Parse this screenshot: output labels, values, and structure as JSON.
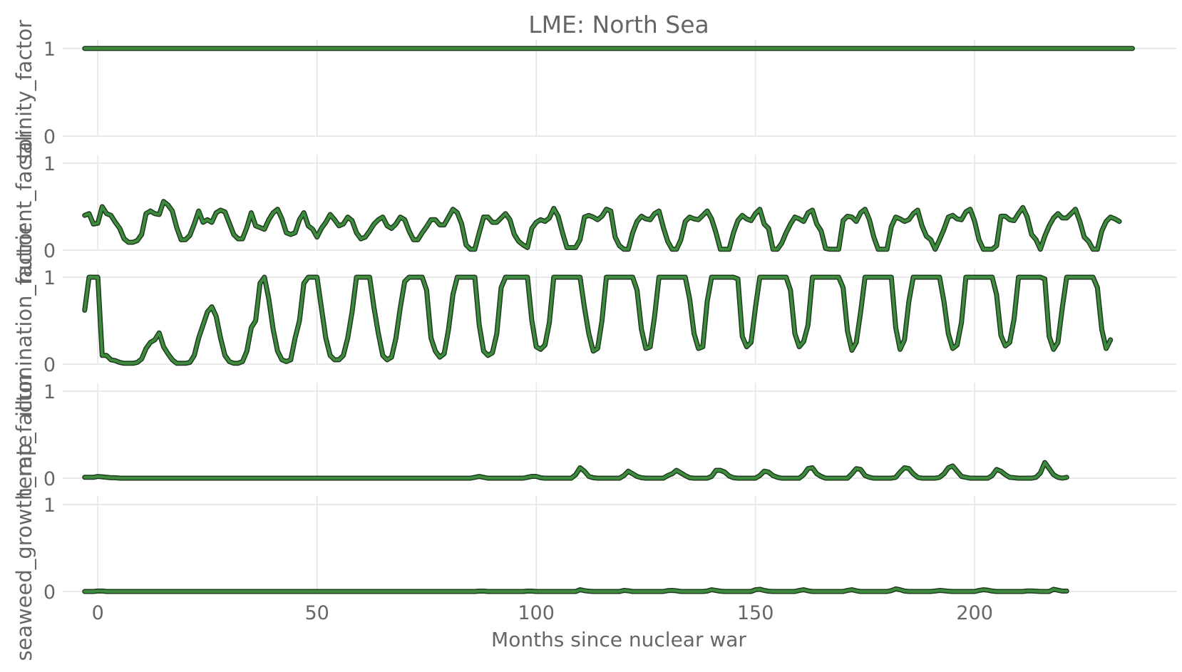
{
  "chart_data": {
    "type": "line",
    "title": "LME: North Sea",
    "xlabel": "Months since nuclear war",
    "xticks": [
      0,
      50,
      100,
      150,
      200
    ],
    "xlim": [
      -8,
      246
    ],
    "x_start": -3,
    "x_step": 1,
    "line_color": "#3d8b3d",
    "line_edge_color": "#1f3a1f",
    "panels": [
      {
        "ylabel": "salinity_factor",
        "yticks": [
          0,
          1
        ],
        "ylim": [
          0,
          1
        ],
        "values": [
          1,
          1,
          1,
          1,
          1,
          1,
          1,
          1,
          1,
          1,
          1,
          1,
          1,
          1,
          1,
          1,
          1,
          1,
          1,
          1,
          1,
          1,
          1,
          1,
          1,
          1,
          1,
          1,
          1,
          1,
          1,
          1,
          1,
          1,
          1,
          1,
          1,
          1,
          1,
          1,
          1,
          1,
          1,
          1,
          1,
          1,
          1,
          1,
          1,
          1,
          1,
          1,
          1,
          1,
          1,
          1,
          1,
          1,
          1,
          1,
          1,
          1,
          1,
          1,
          1,
          1,
          1,
          1,
          1,
          1,
          1,
          1,
          1,
          1,
          1,
          1,
          1,
          1,
          1,
          1,
          1,
          1,
          1,
          1,
          1,
          1,
          1,
          1,
          1,
          1,
          1,
          1,
          1,
          1,
          1,
          1,
          1,
          1,
          1,
          1,
          1,
          1,
          1,
          1,
          1,
          1,
          1,
          1,
          1,
          1,
          1,
          1,
          1,
          1,
          1,
          1,
          1,
          1,
          1,
          1,
          1,
          1,
          1,
          1,
          1,
          1,
          1,
          1,
          1,
          1,
          1,
          1,
          1,
          1,
          1,
          1,
          1,
          1,
          1,
          1,
          1,
          1,
          1,
          1,
          1,
          1,
          1,
          1,
          1,
          1,
          1,
          1,
          1,
          1,
          1,
          1,
          1,
          1,
          1,
          1,
          1,
          1,
          1,
          1,
          1,
          1,
          1,
          1,
          1,
          1,
          1,
          1,
          1,
          1,
          1,
          1,
          1,
          1,
          1,
          1,
          1,
          1,
          1,
          1,
          1,
          1,
          1,
          1,
          1,
          1,
          1,
          1,
          1,
          1,
          1,
          1,
          1,
          1,
          1,
          1,
          1,
          1,
          1,
          1,
          1,
          1,
          1,
          1,
          1,
          1,
          1,
          1,
          1,
          1,
          1,
          1,
          1,
          1,
          1,
          1,
          1,
          1,
          1,
          1,
          1,
          1,
          1,
          1,
          1,
          1,
          1,
          1,
          1,
          1,
          1,
          1,
          1,
          1,
          1,
          1
        ]
      },
      {
        "ylabel": "nutrient_factor",
        "yticks": [
          0,
          1
        ],
        "ylim": [
          0,
          1
        ],
        "values": [
          0.4,
          0.42,
          0.3,
          0.31,
          0.5,
          0.42,
          0.4,
          0.32,
          0.25,
          0.13,
          0.09,
          0.09,
          0.11,
          0.18,
          0.42,
          0.45,
          0.42,
          0.41,
          0.56,
          0.52,
          0.45,
          0.26,
          0.12,
          0.12,
          0.17,
          0.3,
          0.45,
          0.32,
          0.35,
          0.32,
          0.43,
          0.46,
          0.44,
          0.31,
          0.18,
          0.13,
          0.13,
          0.26,
          0.43,
          0.28,
          0.26,
          0.24,
          0.35,
          0.43,
          0.47,
          0.36,
          0.2,
          0.18,
          0.2,
          0.35,
          0.43,
          0.28,
          0.24,
          0.15,
          0.25,
          0.32,
          0.41,
          0.35,
          0.28,
          0.3,
          0.38,
          0.34,
          0.2,
          0.13,
          0.15,
          0.22,
          0.3,
          0.35,
          0.38,
          0.28,
          0.25,
          0.3,
          0.38,
          0.35,
          0.22,
          0.12,
          0.12,
          0.2,
          0.27,
          0.35,
          0.35,
          0.29,
          0.29,
          0.38,
          0.47,
          0.43,
          0.3,
          0.06,
          0.01,
          0.01,
          0.2,
          0.38,
          0.38,
          0.32,
          0.32,
          0.37,
          0.42,
          0.35,
          0.18,
          0.1,
          0.06,
          0.03,
          0.25,
          0.32,
          0.35,
          0.33,
          0.37,
          0.48,
          0.39,
          0.2,
          0.03,
          0.03,
          0.03,
          0.12,
          0.38,
          0.4,
          0.38,
          0.35,
          0.39,
          0.47,
          0.45,
          0.15,
          0.05,
          0.01,
          0.01,
          0.2,
          0.33,
          0.39,
          0.36,
          0.35,
          0.42,
          0.45,
          0.26,
          0.1,
          0.01,
          0.01,
          0.12,
          0.33,
          0.38,
          0.36,
          0.35,
          0.4,
          0.45,
          0.36,
          0.2,
          0.01,
          0.01,
          0.01,
          0.2,
          0.34,
          0.4,
          0.36,
          0.34,
          0.42,
          0.47,
          0.3,
          0.25,
          0.01,
          0.01,
          0.08,
          0.2,
          0.3,
          0.38,
          0.36,
          0.33,
          0.43,
          0.46,
          0.3,
          0.22,
          0.02,
          0.01,
          0.01,
          0.01,
          0.34,
          0.39,
          0.38,
          0.33,
          0.43,
          0.47,
          0.35,
          0.15,
          0.01,
          0.01,
          0.01,
          0.27,
          0.38,
          0.36,
          0.33,
          0.35,
          0.42,
          0.46,
          0.28,
          0.16,
          0.12,
          0.01,
          0.12,
          0.24,
          0.38,
          0.4,
          0.36,
          0.35,
          0.44,
          0.47,
          0.33,
          0.12,
          0.01,
          0.01,
          0.01,
          0.05,
          0.39,
          0.39,
          0.35,
          0.34,
          0.42,
          0.49,
          0.38,
          0.18,
          0.12,
          0.01,
          0.16,
          0.28,
          0.37,
          0.42,
          0.37,
          0.37,
          0.42,
          0.47,
          0.33,
          0.15,
          0.1,
          0.01,
          0.01,
          0.22,
          0.33,
          0.38,
          0.36,
          0.33
        ]
      },
      {
        "ylabel": "illumination_factor",
        "yticks": [
          0,
          1
        ],
        "ylim": [
          0,
          1
        ],
        "values": [
          0.62,
          1,
          1,
          1,
          0.1,
          0.1,
          0.05,
          0.04,
          0.02,
          0.01,
          0.01,
          0.01,
          0.02,
          0.06,
          0.18,
          0.25,
          0.28,
          0.36,
          0.2,
          0.12,
          0.05,
          0.01,
          0.01,
          0.01,
          0.02,
          0.1,
          0.3,
          0.45,
          0.6,
          0.66,
          0.55,
          0.3,
          0.1,
          0.03,
          0.01,
          0.01,
          0.03,
          0.15,
          0.42,
          0.5,
          0.93,
          1,
          0.75,
          0.4,
          0.15,
          0.05,
          0.03,
          0.05,
          0.3,
          0.5,
          0.93,
          1,
          1,
          1,
          0.65,
          0.3,
          0.1,
          0.05,
          0.05,
          0.1,
          0.3,
          0.6,
          1,
          1,
          1,
          1,
          0.65,
          0.35,
          0.1,
          0.05,
          0.08,
          0.3,
          0.65,
          0.95,
          1,
          1,
          1,
          1,
          0.85,
          0.3,
          0.15,
          0.08,
          0.12,
          0.4,
          0.8,
          1,
          1,
          1,
          1,
          1,
          0.45,
          0.15,
          0.1,
          0.13,
          0.35,
          0.88,
          1,
          1,
          1,
          1,
          1,
          1,
          0.5,
          0.2,
          0.17,
          0.22,
          0.48,
          1,
          1,
          1,
          1,
          1,
          1,
          1,
          0.65,
          0.35,
          0.15,
          0.18,
          0.5,
          1,
          1,
          1,
          1,
          1,
          1,
          1,
          0.85,
          0.4,
          0.18,
          0.2,
          0.55,
          1,
          1,
          1,
          1,
          1,
          1,
          1,
          0.75,
          0.35,
          0.18,
          0.2,
          0.72,
          1,
          1,
          1,
          1,
          1,
          1,
          0.98,
          0.32,
          0.2,
          0.25,
          0.65,
          1,
          1,
          1,
          1,
          1,
          1,
          1,
          0.85,
          0.35,
          0.2,
          0.26,
          0.45,
          1,
          1,
          1,
          1,
          1,
          1,
          1,
          0.88,
          0.38,
          0.16,
          0.25,
          0.6,
          1,
          1,
          1,
          1,
          1,
          1,
          1,
          0.42,
          0.17,
          0.28,
          0.72,
          1,
          1,
          1,
          1,
          1,
          1,
          1,
          0.72,
          0.35,
          0.18,
          0.22,
          0.48,
          1,
          1,
          1,
          1,
          1,
          1,
          1,
          0.8,
          0.33,
          0.21,
          0.25,
          0.52,
          1,
          1,
          1,
          1,
          1,
          1,
          0.98,
          0.32,
          0.17,
          0.25,
          0.65,
          1,
          1,
          1,
          1,
          1,
          1,
          1,
          0.88,
          0.4,
          0.18,
          0.28
        ]
      },
      {
        "ylabel": "temp_factor",
        "yticks": [
          0,
          1
        ],
        "ylim": [
          0,
          1
        ],
        "values": [
          0.01,
          0.01,
          0.01,
          0.02,
          0.015,
          0.01,
          0.005,
          0.005,
          0,
          0,
          0,
          0,
          0,
          0,
          0,
          0,
          0,
          0,
          0,
          0,
          0,
          0,
          0,
          0,
          0,
          0,
          0,
          0,
          0,
          0,
          0,
          0,
          0,
          0,
          0,
          0,
          0,
          0,
          0,
          0,
          0,
          0,
          0,
          0,
          0,
          0,
          0,
          0,
          0,
          0,
          0,
          0,
          0,
          0,
          0,
          0,
          0,
          0,
          0,
          0,
          0,
          0,
          0,
          0,
          0,
          0,
          0,
          0,
          0,
          0,
          0,
          0,
          0,
          0,
          0,
          0,
          0,
          0,
          0,
          0,
          0,
          0,
          0,
          0,
          0,
          0,
          0,
          0,
          0,
          0.01,
          0.02,
          0.01,
          0,
          0,
          0,
          0,
          0,
          0,
          0,
          0,
          0,
          0.01,
          0.02,
          0.02,
          0.005,
          0,
          0,
          0,
          0,
          0,
          0,
          0,
          0.04,
          0.12,
          0.08,
          0.02,
          0.005,
          0,
          0,
          0,
          0,
          0,
          0,
          0.03,
          0.08,
          0.05,
          0.02,
          0.005,
          0,
          0,
          0,
          0,
          0,
          0.03,
          0.05,
          0.09,
          0.06,
          0.03,
          0.005,
          0,
          0,
          0,
          0,
          0.02,
          0.09,
          0.09,
          0.07,
          0.025,
          0.005,
          0,
          0,
          0,
          0,
          0,
          0.03,
          0.08,
          0.07,
          0.03,
          0.01,
          0,
          0,
          0,
          0,
          0,
          0.04,
          0.11,
          0.12,
          0.05,
          0.02,
          0,
          0,
          0,
          0,
          0,
          0,
          0.05,
          0.11,
          0.1,
          0.03,
          0.01,
          0,
          0,
          0,
          0,
          0,
          0.01,
          0.07,
          0.12,
          0.11,
          0.05,
          0.01,
          0,
          0,
          0,
          0,
          0.01,
          0.05,
          0.12,
          0.14,
          0.08,
          0.02,
          0.01,
          0,
          0,
          0,
          0,
          0,
          0.03,
          0.1,
          0.08,
          0.04,
          0.01,
          0.005,
          0,
          0,
          0,
          0,
          0.01,
          0.06,
          0.18,
          0.11,
          0.04,
          0.01,
          0,
          0.01
        ]
      },
      {
        "ylabel": "seaweed_growth_rate",
        "yticks": [
          0,
          1
        ],
        "ylim": [
          0,
          1
        ],
        "values": [
          0,
          0,
          0,
          0.005,
          0.005,
          0,
          0,
          0,
          0,
          0,
          0,
          0,
          0,
          0,
          0,
          0,
          0,
          0,
          0,
          0,
          0,
          0,
          0,
          0,
          0,
          0,
          0,
          0,
          0,
          0,
          0,
          0,
          0,
          0,
          0,
          0,
          0,
          0,
          0,
          0,
          0,
          0,
          0,
          0,
          0,
          0,
          0,
          0,
          0,
          0,
          0,
          0,
          0,
          0,
          0,
          0,
          0,
          0,
          0,
          0,
          0,
          0,
          0,
          0,
          0,
          0,
          0,
          0,
          0,
          0,
          0,
          0,
          0,
          0,
          0,
          0,
          0,
          0,
          0,
          0,
          0,
          0,
          0,
          0,
          0,
          0,
          0,
          0,
          0,
          0,
          0.004,
          0.004,
          0,
          0,
          0,
          0,
          0,
          0,
          0,
          0,
          0,
          0.004,
          0.004,
          0,
          0,
          0,
          0,
          0,
          0,
          0,
          0,
          0,
          0,
          0.02,
          0.01,
          0.003,
          0,
          0,
          0,
          0,
          0,
          0,
          0,
          0.012,
          0.008,
          0,
          0,
          0,
          0,
          0,
          0,
          0,
          0,
          0.01,
          0.012,
          0.008,
          0,
          0,
          0,
          0,
          0,
          0,
          0.005,
          0.02,
          0.012,
          0.003,
          0,
          0,
          0,
          0,
          0,
          0,
          0,
          0.02,
          0.025,
          0.012,
          0.003,
          0,
          0,
          0,
          0,
          0,
          0,
          0.012,
          0.02,
          0.008,
          0,
          0,
          0,
          0,
          0,
          0,
          0,
          0,
          0.012,
          0.02,
          0.008,
          0,
          0,
          0,
          0,
          0,
          0,
          0,
          0.01,
          0.03,
          0.02,
          0.005,
          0,
          0,
          0,
          0,
          0,
          0,
          0.005,
          0.012,
          0.008,
          0.003,
          0,
          0,
          0,
          0,
          0,
          0,
          0.012,
          0.02,
          0.015,
          0.005,
          0,
          0,
          0,
          0,
          0,
          0,
          0,
          0.006,
          0.006,
          0.003,
          0,
          0,
          0,
          0.025,
          0.015,
          0.004,
          0.005
        ]
      }
    ]
  }
}
